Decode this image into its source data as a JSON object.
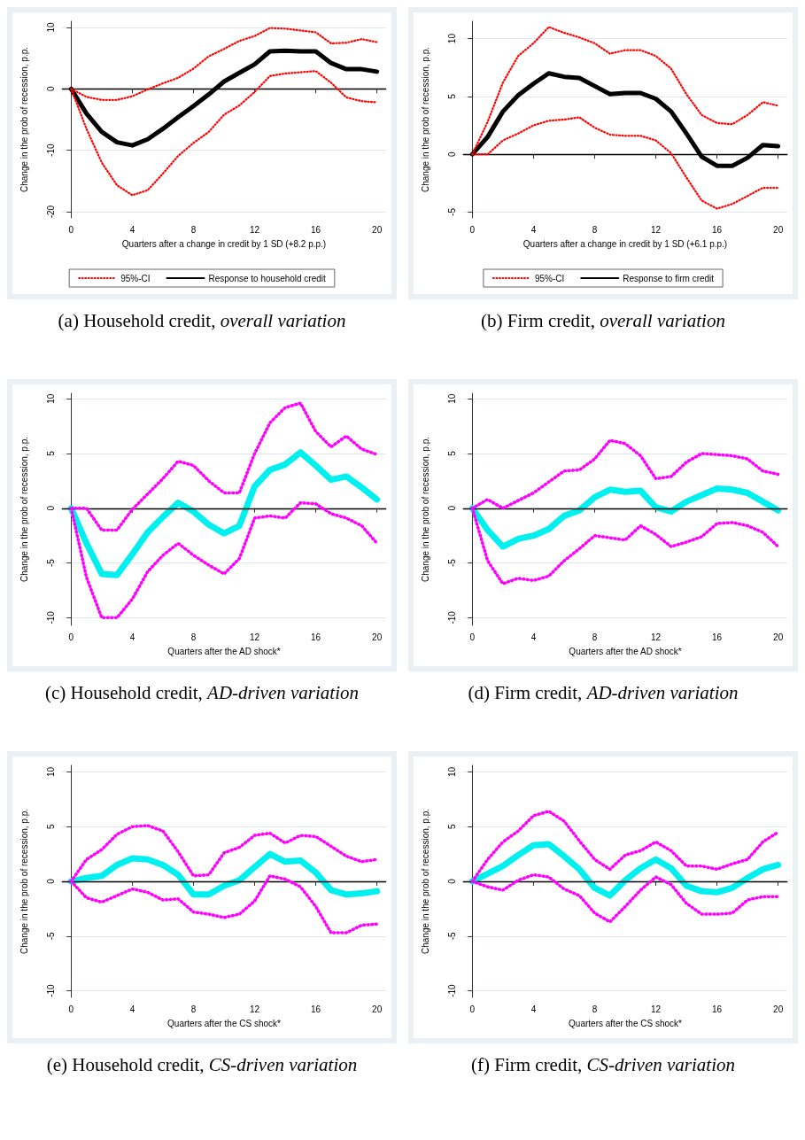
{
  "chart_data": [
    {
      "type": "line",
      "title": "(a) Household credit, overall variation",
      "xlabel": "Quarters after a change in credit by 1 SD (+8.2 p.p.)",
      "ylabel": "Change in the prob of recession, p.p.",
      "x": [
        0,
        1,
        2,
        3,
        4,
        5,
        6,
        7,
        8,
        9,
        10,
        11,
        12,
        13,
        14,
        15,
        16,
        17,
        18,
        19,
        20
      ],
      "xlim": [
        -0.6,
        20.6
      ],
      "xticks": [
        0,
        4,
        8,
        12,
        16,
        20
      ],
      "ylim": [
        -21,
        11
      ],
      "yticks": [
        -20,
        -10,
        0,
        10
      ],
      "grid": "y",
      "legend": "bottom",
      "ref_lines": [
        {
          "axis": "y",
          "value": 0,
          "color": "#000000"
        }
      ],
      "series": [
        {
          "name": "95%-CI",
          "color": "#ff0000",
          "line_style": "dotted",
          "values": [
            0,
            -1.3,
            -1.8,
            -1.8,
            -1.2,
            -0.1,
            0.9,
            1.8,
            3.3,
            5.3,
            6.5,
            7.8,
            8.6,
            9.9,
            9.8,
            9.5,
            9.2,
            7.4,
            7.5,
            8.1,
            7.6
          ]
        },
        {
          "color": "#ff0000",
          "line_style": "dotted",
          "values": [
            0,
            -6.5,
            -12,
            -15.7,
            -17.3,
            -16.5,
            -13.8,
            -10.9,
            -8.8,
            -7,
            -4.2,
            -2.7,
            -0.5,
            2.1,
            2.5,
            2.7,
            2.9,
            1,
            -1.4,
            -2,
            -2.2
          ]
        },
        {
          "name": "Response to household credit",
          "color": "#000000",
          "line_style": "solid",
          "values": [
            0,
            -4,
            -7,
            -8.7,
            -9.2,
            -8.2,
            -6.5,
            -4.6,
            -2.8,
            -0.9,
            1.2,
            2.6,
            4,
            6.1,
            6.2,
            6.1,
            6.1,
            4.2,
            3.2,
            3.2,
            2.8
          ]
        }
      ]
    },
    {
      "type": "line",
      "title": "(b) Firm credit, overall variation",
      "xlabel": "Quarters after a change in credit by 1 SD (+6.1 p.p.)",
      "ylabel": "Change in the prob of recession, p.p.",
      "x": [
        0,
        1,
        2,
        3,
        4,
        5,
        6,
        7,
        8,
        9,
        10,
        11,
        12,
        13,
        14,
        15,
        16,
        17,
        18,
        19,
        20
      ],
      "xlim": [
        -0.6,
        20.6
      ],
      "xticks": [
        0,
        4,
        8,
        12,
        16,
        20
      ],
      "ylim": [
        -5.5,
        11.5
      ],
      "yticks": [
        -5,
        0,
        5,
        10
      ],
      "grid": "y",
      "legend": "bottom",
      "ref_lines": [
        {
          "axis": "y",
          "value": 0,
          "color": "#000000"
        }
      ],
      "series": [
        {
          "name": "95%-CI",
          "color": "#ff0000",
          "line_style": "dotted",
          "values": [
            0,
            2.8,
            6.2,
            8.5,
            9.6,
            11,
            10.5,
            10.1,
            9.6,
            8.7,
            9,
            9,
            8.5,
            7.4,
            5.2,
            3.4,
            2.7,
            2.6,
            3.4,
            4.5,
            4.2
          ]
        },
        {
          "color": "#ff0000",
          "line_style": "dotted",
          "values": [
            0,
            0,
            1.2,
            1.8,
            2.5,
            2.9,
            3,
            3.2,
            2.3,
            1.7,
            1.6,
            1.6,
            1.2,
            0.1,
            -2,
            -4,
            -4.7,
            -4.3,
            -3.6,
            -2.9,
            -2.9
          ]
        },
        {
          "name": "Response to firm credit",
          "color": "#000000",
          "line_style": "solid",
          "values": [
            0,
            1.5,
            3.7,
            5.1,
            6.1,
            7,
            6.7,
            6.6,
            5.9,
            5.2,
            5.3,
            5.3,
            4.8,
            3.7,
            1.8,
            -0.2,
            -1,
            -1,
            -0.3,
            0.8,
            0.7
          ]
        }
      ]
    },
    {
      "type": "line",
      "title": "(c) Household credit, AD-driven variation",
      "xlabel": "Quarters after the AD shock*",
      "ylabel": "Change in the prob of recession, p.p.",
      "x": [
        0,
        1,
        2,
        3,
        4,
        5,
        6,
        7,
        8,
        9,
        10,
        11,
        12,
        13,
        14,
        15,
        16,
        17,
        18,
        19,
        20
      ],
      "xlim": [
        -0.6,
        20.6
      ],
      "xticks": [
        0,
        4,
        8,
        12,
        16,
        20
      ],
      "ylim": [
        -10.7,
        10.5
      ],
      "yticks": [
        -10,
        -5,
        0,
        5,
        10
      ],
      "grid": "y",
      "ref_lines": [
        {
          "axis": "y",
          "value": 0,
          "color": "#000000"
        }
      ],
      "series": [
        {
          "color": "#ff00ff",
          "line_style": "dotted",
          "values": [
            0,
            0,
            -2,
            -2,
            -0.1,
            1.3,
            2.7,
            4.3,
            3.9,
            2.5,
            1.4,
            1.4,
            5,
            7.8,
            9.2,
            9.6,
            7,
            5.6,
            6.6,
            5.4,
            4.9
          ]
        },
        {
          "color": "#ff00ff",
          "line_style": "dotted",
          "values": [
            0,
            -6.3,
            -10,
            -10,
            -8.3,
            -5.8,
            -4.3,
            -3.2,
            -4.3,
            -5.2,
            -6,
            -4.6,
            -0.9,
            -0.7,
            -0.9,
            0.5,
            0.4,
            -0.5,
            -0.9,
            -1.6,
            -3.2
          ]
        },
        {
          "color": "#00f0f0",
          "line_style": "solid",
          "values": [
            0,
            -3.2,
            -6,
            -6.1,
            -4.2,
            -2.2,
            -0.8,
            0.5,
            -0.3,
            -1.5,
            -2.3,
            -1.6,
            2,
            3.5,
            4,
            5.1,
            3.9,
            2.6,
            2.9,
            1.9,
            0.8
          ]
        }
      ]
    },
    {
      "type": "line",
      "title": "(d) Firm credit, AD-driven variation",
      "xlabel": "Quarters after the AD shock*",
      "ylabel": "Change in the prob of recession, p.p.",
      "x": [
        0,
        1,
        2,
        3,
        4,
        5,
        6,
        7,
        8,
        9,
        10,
        11,
        12,
        13,
        14,
        15,
        16,
        17,
        18,
        19,
        20
      ],
      "xlim": [
        -0.6,
        20.6
      ],
      "xticks": [
        0,
        4,
        8,
        12,
        16,
        20
      ],
      "ylim": [
        -10.7,
        10.5
      ],
      "yticks": [
        -10,
        -5,
        0,
        5,
        10
      ],
      "grid": "y",
      "ref_lines": [
        {
          "axis": "y",
          "value": 0,
          "color": "#000000"
        }
      ],
      "series": [
        {
          "color": "#ff00ff",
          "line_style": "dotted",
          "values": [
            0,
            0.8,
            0,
            0.7,
            1.4,
            2.4,
            3.4,
            3.5,
            4.5,
            6.2,
            5.9,
            4.8,
            2.7,
            2.9,
            4.2,
            5,
            4.9,
            4.8,
            4.5,
            3.4,
            3.1
          ]
        },
        {
          "color": "#ff00ff",
          "line_style": "dotted",
          "values": [
            0,
            -4.8,
            -6.9,
            -6.4,
            -6.6,
            -6.2,
            -4.8,
            -3.7,
            -2.5,
            -2.7,
            -2.9,
            -1.6,
            -2.4,
            -3.5,
            -3.1,
            -2.6,
            -1.4,
            -1.3,
            -1.6,
            -2.2,
            -3.5
          ]
        },
        {
          "color": "#00f0f0",
          "line_style": "solid",
          "values": [
            0,
            -2,
            -3.5,
            -2.8,
            -2.5,
            -1.9,
            -0.7,
            -0.2,
            1,
            1.7,
            1.5,
            1.6,
            0.1,
            -0.3,
            0.6,
            1.2,
            1.8,
            1.7,
            1.4,
            0.6,
            -0.2
          ]
        }
      ]
    },
    {
      "type": "line",
      "title": "(e) Household credit, CS-driven variation",
      "xlabel": "Quarters after the CS shock*",
      "ylabel": "Change in the prob of recession, p.p.",
      "x": [
        0,
        1,
        2,
        3,
        4,
        5,
        6,
        7,
        8,
        9,
        10,
        11,
        12,
        13,
        14,
        15,
        16,
        17,
        18,
        19,
        20
      ],
      "xlim": [
        -0.6,
        20.6
      ],
      "xticks": [
        0,
        4,
        8,
        12,
        16,
        20
      ],
      "ylim": [
        -10.6,
        10.6
      ],
      "yticks": [
        -10,
        -5,
        0,
        5,
        10
      ],
      "grid": "y",
      "ref_lines": [
        {
          "axis": "y",
          "value": 0,
          "color": "#000000"
        }
      ],
      "series": [
        {
          "color": "#ff00ff",
          "line_style": "dotted",
          "values": [
            0,
            2,
            2.9,
            4.3,
            5,
            5.1,
            4.6,
            2.7,
            0.5,
            0.6,
            2.6,
            3.1,
            4.2,
            4.4,
            3.5,
            4.2,
            4.1,
            3.2,
            2.3,
            1.8,
            2
          ]
        },
        {
          "color": "#ff00ff",
          "line_style": "dotted",
          "values": [
            0,
            -1.5,
            -1.9,
            -1.3,
            -0.7,
            -1,
            -1.7,
            -1.6,
            -2.8,
            -3,
            -3.3,
            -3,
            -1.8,
            0.5,
            0.2,
            -0.5,
            -2.3,
            -4.7,
            -4.7,
            -4,
            -3.9
          ]
        },
        {
          "color": "#00f0f0",
          "line_style": "solid",
          "values": [
            0,
            0.3,
            0.5,
            1.5,
            2.1,
            2,
            1.5,
            0.6,
            -1.2,
            -1.2,
            -0.4,
            0.1,
            1.3,
            2.5,
            1.8,
            1.9,
            0.8,
            -0.8,
            -1.2,
            -1.1,
            -0.9
          ]
        }
      ]
    },
    {
      "type": "line",
      "title": "(f) Firm credit, CS-driven variation",
      "xlabel": "Quarters after the CS shock*",
      "ylabel": "Change in the prob of recession, p.p.",
      "x": [
        0,
        1,
        2,
        3,
        4,
        5,
        6,
        7,
        8,
        9,
        10,
        11,
        12,
        13,
        14,
        15,
        16,
        17,
        18,
        19,
        20
      ],
      "xlim": [
        -0.6,
        20.6
      ],
      "xticks": [
        0,
        4,
        8,
        12,
        16,
        20
      ],
      "ylim": [
        -10.6,
        10.6
      ],
      "yticks": [
        -10,
        -5,
        0,
        5,
        10
      ],
      "grid": "y",
      "ref_lines": [
        {
          "axis": "y",
          "value": 0,
          "color": "#000000"
        }
      ],
      "series": [
        {
          "color": "#ff00ff",
          "line_style": "dotted",
          "values": [
            0,
            2,
            3.6,
            4.6,
            6,
            6.4,
            5.5,
            3.7,
            2,
            1.1,
            2.4,
            2.8,
            3.6,
            2.8,
            1.4,
            1.4,
            1.1,
            1.6,
            2,
            3.6,
            4.5
          ]
        },
        {
          "color": "#ff00ff",
          "line_style": "dotted",
          "values": [
            0,
            -0.5,
            -0.8,
            0.1,
            0.6,
            0.4,
            -0.7,
            -1.3,
            -2.9,
            -3.7,
            -2.3,
            -0.8,
            0.4,
            -0.3,
            -2,
            -3,
            -3,
            -2.9,
            -1.7,
            -1.4,
            -1.4
          ]
        },
        {
          "color": "#00f0f0",
          "line_style": "solid",
          "values": [
            0,
            0.7,
            1.4,
            2.4,
            3.3,
            3.4,
            2.3,
            1.1,
            -0.6,
            -1.3,
            0.1,
            1.2,
            2,
            1.2,
            -0.4,
            -0.9,
            -1,
            -0.6,
            0.3,
            1.1,
            1.5
          ]
        }
      ]
    }
  ]
}
